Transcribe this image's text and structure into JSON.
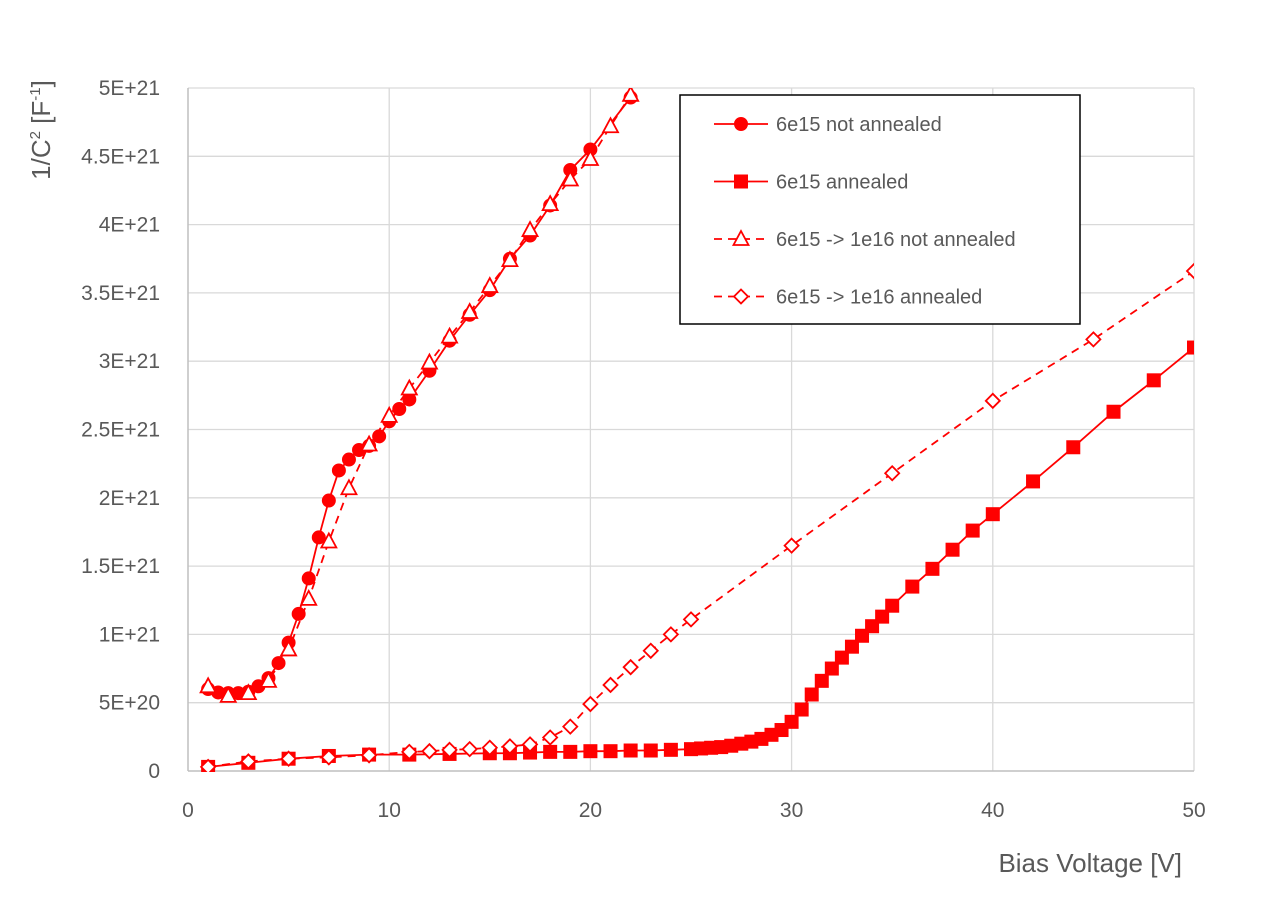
{
  "chart_data": {
    "type": "scatter",
    "xlabel": "Bias Voltage [V]",
    "ylabel": {
      "base": "1/C",
      "sup1": "2",
      "mid": " [F",
      "sup2": "-1",
      "end": "]"
    },
    "xlim": [
      0,
      50
    ],
    "ylim": [
      0,
      5e+21
    ],
    "x_ticks": [
      0,
      10,
      20,
      30,
      40,
      50
    ],
    "x_tick_labels": [
      "0",
      "10",
      "20",
      "30",
      "40",
      "50"
    ],
    "y_ticks": [
      0,
      5e+20,
      1e+21,
      1.5e+21,
      2e+21,
      2.5e+21,
      3e+21,
      3.5e+21,
      4e+21,
      4.5e+21,
      5e+21
    ],
    "y_tick_labels": [
      "0",
      "5E+20",
      "1E+21",
      "1.5E+21",
      "2E+21",
      "2.5E+21",
      "3E+21",
      "3.5E+21",
      "4E+21",
      "4.5E+21",
      "5E+21"
    ],
    "grid": true,
    "legend_position": "top-right",
    "color": "#ff0000",
    "series": [
      {
        "name": "6e15 not annealed",
        "marker": "circle-filled",
        "line": "solid",
        "x": [
          1,
          1.5,
          2,
          2.5,
          3,
          3.5,
          4,
          4.5,
          5,
          5.5,
          6,
          6.5,
          7,
          7.5,
          8,
          8.5,
          9,
          9.5,
          10,
          10.5,
          11,
          12,
          13,
          14,
          15,
          16,
          17,
          18,
          19,
          20,
          22
        ],
        "y": [
          6e+20,
          5.75e+20,
          5.7e+20,
          5.7e+20,
          5.8e+20,
          6.2e+20,
          6.8e+20,
          7.9e+20,
          9.4e+20,
          1.15e+21,
          1.41e+21,
          1.71e+21,
          1.98e+21,
          2.2e+21,
          2.28e+21,
          2.35e+21,
          2.38e+21,
          2.45e+21,
          2.56e+21,
          2.65e+21,
          2.72e+21,
          2.93e+21,
          3.15e+21,
          3.34e+21,
          3.52e+21,
          3.75e+21,
          3.92e+21,
          4.14e+21,
          4.4e+21,
          4.55e+21,
          4.93e+21
        ]
      },
      {
        "name": "6e15 annealed",
        "marker": "square-filled",
        "line": "solid",
        "x": [
          1,
          3,
          5,
          7,
          9,
          11,
          13,
          15,
          16,
          17,
          18,
          19,
          20,
          21,
          22,
          23,
          24,
          25,
          25.5,
          26,
          26.5,
          27,
          27.5,
          28,
          28.5,
          29,
          29.5,
          30,
          30.5,
          31,
          31.5,
          32,
          32.5,
          33,
          33.5,
          34,
          34.5,
          35,
          36,
          37,
          38,
          39,
          40,
          42,
          44,
          46,
          48,
          50
        ],
        "y": [
          3e+19,
          6e+19,
          9e+19,
          1.1e+20,
          1.2e+20,
          1.2e+20,
          1.25e+20,
          1.3e+20,
          1.3e+20,
          1.35e+20,
          1.4e+20,
          1.4e+20,
          1.45e+20,
          1.45e+20,
          1.5e+20,
          1.5e+20,
          1.55e+20,
          1.6e+20,
          1.65e+20,
          1.7e+20,
          1.75e+20,
          1.85e+20,
          2e+20,
          2.15e+20,
          2.35e+20,
          2.65e+20,
          3e+20,
          3.6e+20,
          4.5e+20,
          5.6e+20,
          6.6e+20,
          7.5e+20,
          8.3e+20,
          9.1e+20,
          9.9e+20,
          1.06e+21,
          1.13e+21,
          1.21e+21,
          1.35e+21,
          1.48e+21,
          1.62e+21,
          1.76e+21,
          1.88e+21,
          2.12e+21,
          2.37e+21,
          2.63e+21,
          2.86e+21,
          3.1e+21
        ]
      },
      {
        "name": "6e15 -> 1e16 not annealed",
        "marker": "triangle-open",
        "line": "dashed",
        "x": [
          1,
          2,
          3,
          4,
          5,
          6,
          7,
          8,
          9,
          10,
          11,
          12,
          13,
          14,
          15,
          16,
          17,
          18,
          19,
          20,
          21,
          22
        ],
        "y": [
          6.2e+20,
          5.5e+20,
          5.7e+20,
          6.6e+20,
          8.9e+20,
          1.26e+21,
          1.68e+21,
          2.07e+21,
          2.39e+21,
          2.6e+21,
          2.8e+21,
          2.99e+21,
          3.18e+21,
          3.36e+21,
          3.55e+21,
          3.74e+21,
          3.96e+21,
          4.15e+21,
          4.33e+21,
          4.48e+21,
          4.72e+21,
          4.95e+21
        ]
      },
      {
        "name": "6e15 -> 1e16 annealed",
        "marker": "diamond-open",
        "line": "dashed",
        "x": [
          1,
          3,
          5,
          7,
          9,
          11,
          12,
          13,
          14,
          15,
          16,
          17,
          18,
          19,
          20,
          21,
          22,
          23,
          24,
          25,
          30,
          35,
          40,
          45,
          50
        ],
        "y": [
          3e+19,
          7e+19,
          9e+19,
          1e+20,
          1.15e+20,
          1.4e+20,
          1.45e+20,
          1.55e+20,
          1.6e+20,
          1.7e+20,
          1.8e+20,
          1.95e+20,
          2.45e+20,
          3.25e+20,
          4.9e+20,
          6.3e+20,
          7.6e+20,
          8.8e+20,
          1e+21,
          1.11e+21,
          1.65e+21,
          2.18e+21,
          2.71e+21,
          3.16e+21,
          3.66e+21
        ]
      }
    ]
  }
}
